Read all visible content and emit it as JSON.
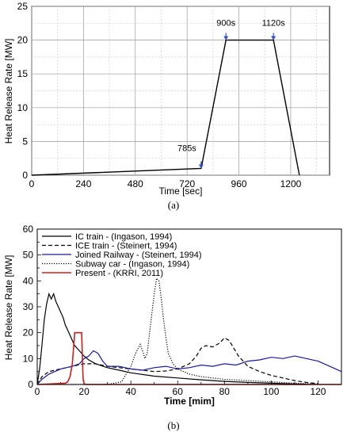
{
  "chart_data": [
    {
      "type": "line",
      "caption": "(a)",
      "xlabel": "Time [sec]",
      "ylabel": "Heat Release Rate [MW]",
      "xlim": [
        0,
        1380
      ],
      "ylim": [
        0,
        25
      ],
      "xticks": [
        0,
        240,
        480,
        720,
        960,
        1200
      ],
      "yticks": [
        0,
        5,
        10,
        15,
        20,
        25
      ],
      "grid": true,
      "series": [
        {
          "x": [
            0,
            785,
            900,
            1120,
            1240
          ],
          "y": [
            0,
            1,
            20,
            20,
            0
          ],
          "color": "#000000"
        }
      ],
      "annotations": [
        {
          "text": "785s",
          "x": 785,
          "y": 1
        },
        {
          "text": "900s",
          "x": 900,
          "y": 20
        },
        {
          "text": "1120s",
          "x": 1120,
          "y": 20
        }
      ]
    },
    {
      "type": "line",
      "caption": "(b)",
      "xlabel": "Time [mim]",
      "ylabel": "Heat Release Rate [MW]",
      "xlim": [
        0,
        130
      ],
      "ylim": [
        0,
        60
      ],
      "xticks": [
        0,
        20,
        40,
        60,
        80,
        100,
        120
      ],
      "yticks": [
        0,
        10,
        20,
        30,
        40,
        50,
        60
      ],
      "grid": false,
      "legend": "top-left",
      "series": [
        {
          "name": "IC train - (Ingason, 1994)",
          "color": "#000000",
          "dash": "solid",
          "x": [
            0,
            1,
            2,
            3,
            4,
            5,
            6,
            7,
            8,
            9,
            10,
            11,
            12,
            13,
            14,
            15,
            16,
            18,
            20,
            22,
            25,
            30,
            35,
            40,
            50,
            60,
            70,
            80,
            90,
            100,
            110,
            115
          ],
          "y": [
            0,
            6,
            15,
            25,
            31,
            35,
            33,
            35,
            32,
            30,
            28,
            26,
            23,
            21,
            19,
            17,
            15,
            13,
            11,
            9.5,
            8,
            6.5,
            5.5,
            4.5,
            3.2,
            2.5,
            1.8,
            1.2,
            0.8,
            0.5,
            0.2,
            0.1
          ]
        },
        {
          "name": "ICE train - (Steinert, 1994)",
          "color": "#000000",
          "dash": "dashed",
          "x": [
            0,
            2,
            5,
            10,
            15,
            20,
            25,
            30,
            35,
            40,
            45,
            50,
            55,
            60,
            65,
            68,
            70,
            72,
            75,
            78,
            80,
            82,
            84,
            86,
            90,
            95,
            100,
            105,
            110,
            115,
            120
          ],
          "y": [
            0,
            3,
            5,
            6,
            7,
            8,
            8,
            7,
            6.5,
            6,
            5.5,
            5,
            5.2,
            6,
            8,
            11,
            14,
            15,
            14.5,
            16,
            18,
            17,
            14,
            11,
            7,
            5,
            3.5,
            2.5,
            1.5,
            0.8,
            0.3
          ]
        },
        {
          "name": "Joined Railway - (Steinert, 1994)",
          "color": "#1a1a9c",
          "dash": "solid",
          "x": [
            0,
            2,
            5,
            10,
            15,
            18,
            20,
            22,
            24,
            26,
            28,
            30,
            35,
            40,
            45,
            50,
            55,
            60,
            65,
            70,
            75,
            80,
            85,
            90,
            95,
            100,
            105,
            110,
            115,
            120,
            125,
            130
          ],
          "y": [
            0,
            2,
            4,
            6,
            7,
            8,
            10,
            11,
            13,
            12,
            9,
            7,
            7,
            6,
            5.5,
            6.5,
            7,
            6,
            6.5,
            7.5,
            7,
            8,
            7.5,
            9,
            9.5,
            10.5,
            10,
            11,
            10,
            9,
            7,
            5
          ]
        },
        {
          "name": "Subway car - (Ingason, 1994)",
          "color": "#000000",
          "dash": "dotted",
          "x": [
            0,
            10,
            20,
            30,
            36,
            40,
            42,
            44,
            45,
            46,
            47,
            48,
            50,
            51,
            52,
            53,
            54,
            55,
            56,
            58,
            60,
            65,
            70,
            75,
            80,
            90,
            100,
            110,
            120
          ],
          "y": [
            0,
            0,
            0,
            0,
            1,
            7,
            12,
            15.5,
            13,
            10,
            12,
            20,
            35,
            41,
            40,
            33,
            25,
            18,
            12,
            8,
            6,
            4,
            3,
            2.5,
            2,
            1.5,
            1,
            0.5,
            0.2
          ]
        },
        {
          "name": "Present - (KRRI, 2011)",
          "color": "#cc1f1f",
          "dash": "solid",
          "x": [
            0,
            12,
            13,
            14,
            15,
            16,
            17,
            18,
            19,
            19.3,
            19.6,
            20,
            21,
            130
          ],
          "y": [
            0,
            0.5,
            1,
            3,
            8,
            20,
            20,
            20,
            20,
            10,
            2,
            0.3,
            0,
            0
          ]
        }
      ]
    }
  ]
}
